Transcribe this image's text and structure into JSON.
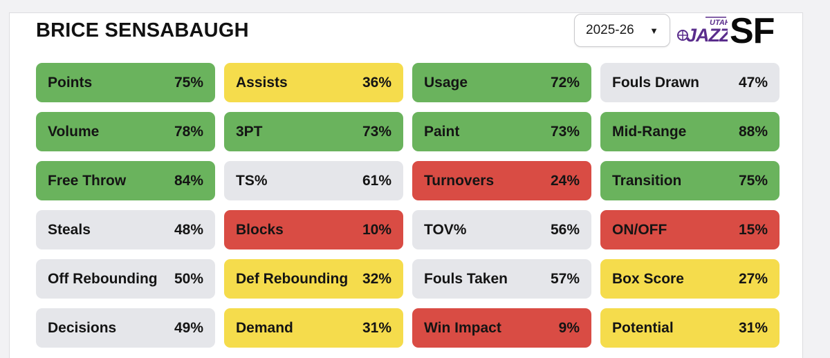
{
  "header": {
    "player_name": "BRICE SENSABAUGH",
    "season": "2025-26",
    "team_logo_text_top": "UTAH",
    "team_logo_text": "JAZZ",
    "position": "SF",
    "colors": {
      "team_purple": "#5a2d8c"
    }
  },
  "colors": {
    "green": "#6ab35d",
    "yellow": "#f5dc4c",
    "red": "#d94c44",
    "gray": "#e5e6ea"
  },
  "stats": [
    {
      "label": "Points",
      "value": "75%",
      "tier": "green"
    },
    {
      "label": "Assists",
      "value": "36%",
      "tier": "yellow"
    },
    {
      "label": "Usage",
      "value": "72%",
      "tier": "green"
    },
    {
      "label": "Fouls Drawn",
      "value": "47%",
      "tier": "gray"
    },
    {
      "label": "Volume",
      "value": "78%",
      "tier": "green"
    },
    {
      "label": "3PT",
      "value": "73%",
      "tier": "green"
    },
    {
      "label": "Paint",
      "value": "73%",
      "tier": "green"
    },
    {
      "label": "Mid-Range",
      "value": "88%",
      "tier": "green"
    },
    {
      "label": "Free Throw",
      "value": "84%",
      "tier": "green"
    },
    {
      "label": "TS%",
      "value": "61%",
      "tier": "gray"
    },
    {
      "label": "Turnovers",
      "value": "24%",
      "tier": "red"
    },
    {
      "label": "Transition",
      "value": "75%",
      "tier": "green"
    },
    {
      "label": "Steals",
      "value": "48%",
      "tier": "gray"
    },
    {
      "label": "Blocks",
      "value": "10%",
      "tier": "red"
    },
    {
      "label": "TOV%",
      "value": "56%",
      "tier": "gray"
    },
    {
      "label": "ON/OFF",
      "value": "15%",
      "tier": "red"
    },
    {
      "label": "Off Rebounding",
      "value": "50%",
      "tier": "gray"
    },
    {
      "label": "Def Rebounding",
      "value": "32%",
      "tier": "yellow"
    },
    {
      "label": "Fouls Taken",
      "value": "57%",
      "tier": "gray"
    },
    {
      "label": "Box Score",
      "value": "27%",
      "tier": "yellow"
    },
    {
      "label": "Decisions",
      "value": "49%",
      "tier": "gray"
    },
    {
      "label": "Demand",
      "value": "31%",
      "tier": "yellow"
    },
    {
      "label": "Win Impact",
      "value": "9%",
      "tier": "red"
    },
    {
      "label": "Potential",
      "value": "31%",
      "tier": "yellow"
    }
  ]
}
